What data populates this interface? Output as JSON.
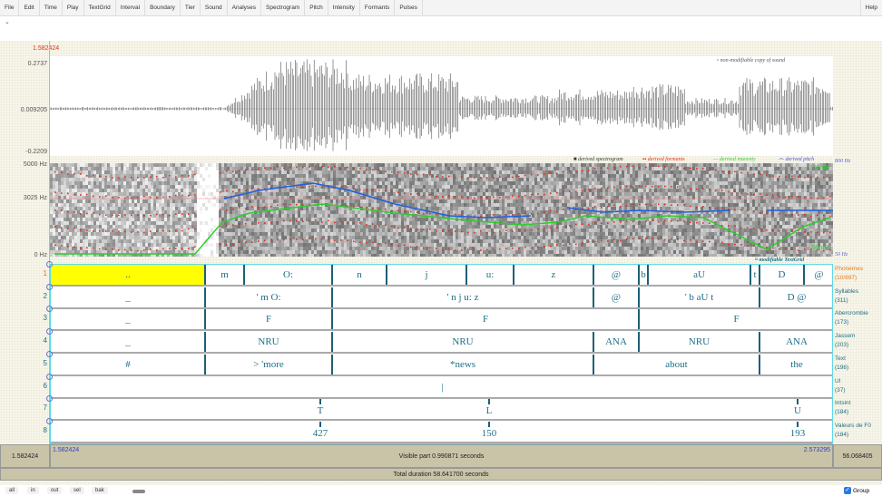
{
  "menu": [
    "File",
    "Edit",
    "Time",
    "Play",
    "TextGrid",
    "Interval",
    "Boundary",
    "Tier",
    "Sound",
    "Analyses",
    "Spectrogram",
    "Pitch",
    "Intensity",
    "Formants",
    "Pulses"
  ],
  "help": "Help",
  "cursor_time": "1.582424",
  "waveform": {
    "max": "0.2737",
    "mid": "0.009205",
    "min": "-0.2209",
    "label": "non-modifiable copy of sound"
  },
  "spectrogram": {
    "top": "5000 Hz",
    "mid": "3025 Hz",
    "bottom": "0 Hz",
    "pitch_top": "800 Hz",
    "pitch_bottom": "50 Hz",
    "db_top": "100 dB",
    "db_bottom": "50 dB",
    "legend": [
      "derived spectrogram",
      "derived formants",
      "derived intensity",
      "derived pitch"
    ],
    "colors": {
      "formants": "#e0301e",
      "intensity": "#2ecc2e",
      "pitch": "#2060e0"
    }
  },
  "textgrid_label": "modifiable TextGrid",
  "tiers": [
    {
      "num": "1",
      "name": "Phonèmes",
      "count": "(10/697)",
      "labels": [
        "..",
        "m",
        "O:",
        "n",
        "j",
        "u:",
        "z",
        "@",
        "b",
        "aU",
        "t",
        "D",
        "@"
      ]
    },
    {
      "num": "2",
      "name": "Syllables",
      "count": "(311)",
      "labels": [
        "_",
        "' m O:",
        "' n j u: z",
        "@",
        "' b aU t",
        "D @"
      ]
    },
    {
      "num": "3",
      "name": "Abercrombie",
      "count": "(173)",
      "labels": [
        "_",
        "F",
        "F",
        "F"
      ]
    },
    {
      "num": "4",
      "name": "Jassem",
      "count": "(203)",
      "labels": [
        "_",
        "NRU",
        "NRU",
        "ANA",
        "NRU",
        "ANA"
      ]
    },
    {
      "num": "5",
      "name": "Text",
      "count": "(196)",
      "labels": [
        "#",
        "> 'more",
        "*news",
        "about",
        "the"
      ]
    },
    {
      "num": "6",
      "name": "UI",
      "count": "(37)",
      "labels": [
        "|"
      ]
    },
    {
      "num": "7",
      "name": "Intsint",
      "count": "(184)",
      "labels": [
        "T",
        "L",
        "U"
      ]
    },
    {
      "num": "8",
      "name": "Valeurs de F0",
      "count": "(184)",
      "labels": [
        "427",
        "150",
        "193"
      ]
    }
  ],
  "bottom": {
    "left": "1.582424",
    "visible_start": "1.582424",
    "visible": "Visible part 0.990871 seconds",
    "visible_end": "2.573295",
    "right": "56.068405",
    "total": "Total duration 58.641700 seconds"
  },
  "buttons": [
    "all",
    "in",
    "out",
    "sel",
    "bak"
  ],
  "group": "Group"
}
